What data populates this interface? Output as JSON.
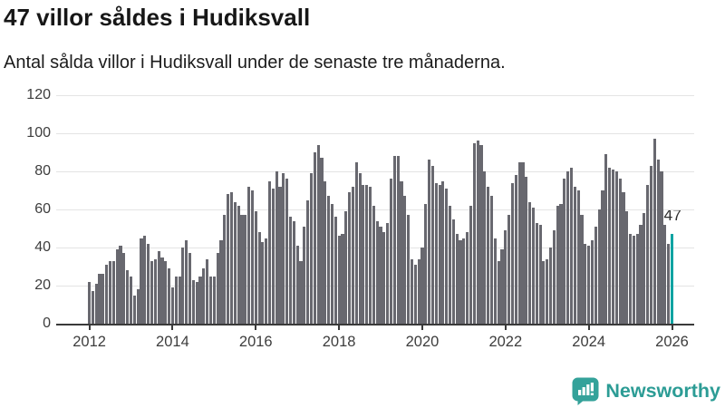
{
  "header": {
    "title": "47 villor såldes i Hudiksvall",
    "subtitle": "Antal sålda villor i Hudiksvall under de senaste tre månaderna."
  },
  "chart_data": {
    "type": "bar",
    "title": "47 villor såldes i Hudiksvall",
    "subtitle": "Antal sålda villor i Hudiksvall under de senaste tre månaderna.",
    "x_start_month": "2012-01",
    "x_frequency": "monthly",
    "values": [
      22,
      17,
      21,
      26,
      26,
      31,
      33,
      33,
      39,
      41,
      37,
      28,
      25,
      15,
      18,
      45,
      46,
      42,
      33,
      34,
      38,
      35,
      33,
      29,
      19,
      25,
      25,
      40,
      44,
      37,
      23,
      22,
      25,
      29,
      34,
      25,
      25,
      37,
      44,
      57,
      68,
      69,
      64,
      62,
      57,
      57,
      72,
      70,
      59,
      48,
      43,
      45,
      75,
      71,
      80,
      72,
      79,
      76,
      56,
      54,
      41,
      33,
      51,
      65,
      79,
      90,
      94,
      87,
      75,
      67,
      63,
      56,
      46,
      47,
      59,
      69,
      72,
      85,
      79,
      73,
      73,
      72,
      62,
      54,
      51,
      48,
      53,
      76,
      88,
      88,
      75,
      67,
      57,
      34,
      31,
      34,
      40,
      63,
      86,
      83,
      74,
      73,
      75,
      71,
      62,
      55,
      47,
      44,
      45,
      48,
      62,
      95,
      96,
      94,
      80,
      72,
      67,
      45,
      33,
      39,
      49,
      57,
      74,
      78,
      85,
      85,
      77,
      64,
      61,
      53,
      52,
      33,
      34,
      40,
      49,
      62,
      63,
      76,
      80,
      82,
      72,
      70,
      57,
      42,
      41,
      44,
      51,
      60,
      70,
      89,
      82,
      81,
      80,
      76,
      69,
      59,
      47,
      46,
      47,
      52,
      58,
      73,
      83,
      97,
      86,
      80,
      52,
      42,
      47
    ],
    "highlight_index": 168,
    "highlight_label": "47",
    "ylim": [
      0,
      120
    ],
    "yticks": [
      0,
      20,
      40,
      60,
      80,
      100,
      120
    ],
    "xtick_years": [
      2012,
      2014,
      2016,
      2018,
      2020,
      2022,
      2024,
      2026
    ],
    "grid": "horizontal-only",
    "legend": "none",
    "bar_color": "#68686f",
    "highlight_color": "#0da3a2",
    "axis_color": "#3a3a3a",
    "gridline_color": "#e4e4e4"
  },
  "footer": {
    "brand": "Newsworthy",
    "brand_color": "#2c9c95"
  }
}
